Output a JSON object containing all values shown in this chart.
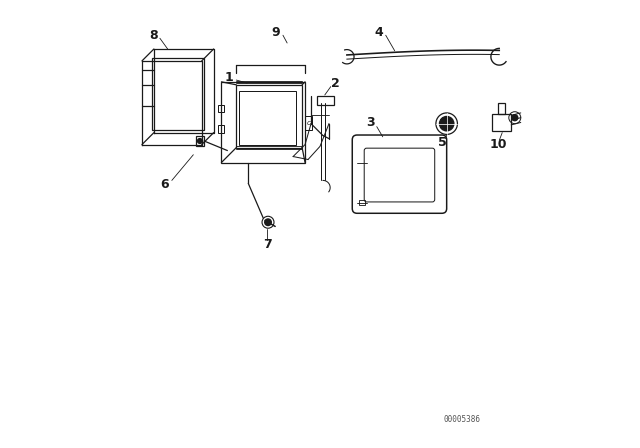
{
  "bg_color": "#ffffff",
  "line_color": "#1a1a1a",
  "part_number_code": "00005386",
  "figsize": [
    6.4,
    4.48
  ],
  "dpi": 100
}
